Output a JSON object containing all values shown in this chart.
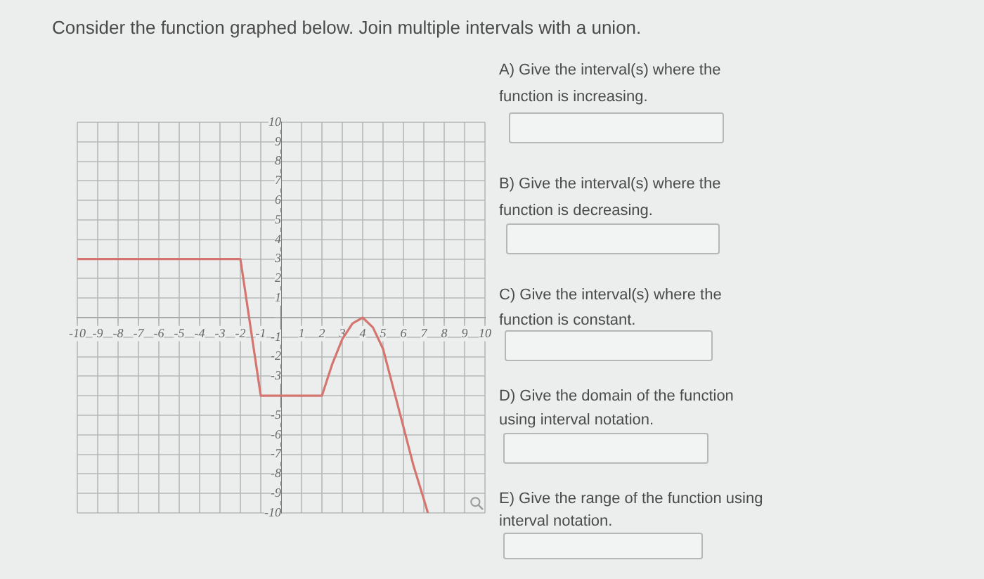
{
  "chart_data": {
    "type": "line",
    "title": "Consider the function graphed below. Join multiple intervals with a union.",
    "annotations": [
      "A) Give the interval(s) where the function is increasing.",
      "B) Give the interval(s) where the function is decreasing.",
      "C) Give the interval(s) where the function is constant.",
      "D) Give the domain of the function using interval notation.",
      "E) Give the range of the function using interval notation."
    ],
    "x": [
      -10,
      -2,
      -1,
      2,
      2.5,
      3,
      3.5,
      4,
      4.5,
      5,
      5.5,
      6,
      6.5,
      7,
      7.2
    ],
    "series": [
      {
        "color": "#d4766f",
        "values": [
          3,
          3,
          -4,
          -4,
          -2.4,
          -1.1,
          -0.3,
          0,
          -0.5,
          -1.6,
          -3.6,
          -5.6,
          -7.6,
          -9.3,
          -10
        ]
      }
    ],
    "xlim": [
      -10,
      10
    ],
    "ylim": [
      -10,
      10
    ],
    "xticks": [
      -10,
      -9,
      -8,
      -7,
      -6,
      -5,
      -4,
      -3,
      -2,
      -1,
      {
        "value": 0,
        "label": null
      },
      1,
      2,
      3,
      4,
      5,
      6,
      7,
      8,
      9,
      10
    ],
    "yticks": [
      -10,
      -9,
      -8,
      -7,
      -6,
      -5,
      {
        "value": -4,
        "label": null
      },
      -3,
      -2,
      -1,
      {
        "value": 0,
        "label": null
      },
      1,
      2,
      3,
      4,
      5,
      6,
      7,
      8,
      9,
      10
    ],
    "grid": true,
    "marker": "none",
    "line_style": "solid"
  }
}
